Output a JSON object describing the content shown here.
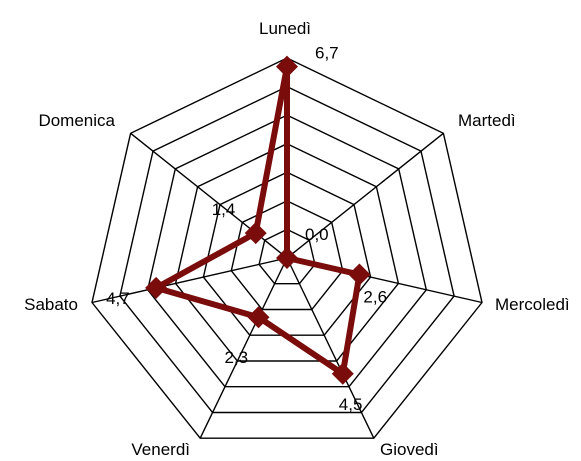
{
  "chart_data": {
    "type": "radar",
    "categories": [
      "Lunedì",
      "Martedì",
      "Mercoledì",
      "Giovedì",
      "Venerdì",
      "Sabato",
      "Domenica"
    ],
    "series": [
      {
        "values": [
          6.7,
          0.0,
          2.6,
          4.5,
          2.3,
          4.7,
          1.4
        ],
        "color": "#7a0c0c"
      }
    ],
    "data_labels": [
      "6,7",
      "0,0",
      "2,6",
      "4,5",
      "2,3",
      "4,7",
      "1,4"
    ],
    "rlim": [
      0,
      7
    ],
    "grid_rings": 7,
    "grid": true,
    "legend": false
  }
}
